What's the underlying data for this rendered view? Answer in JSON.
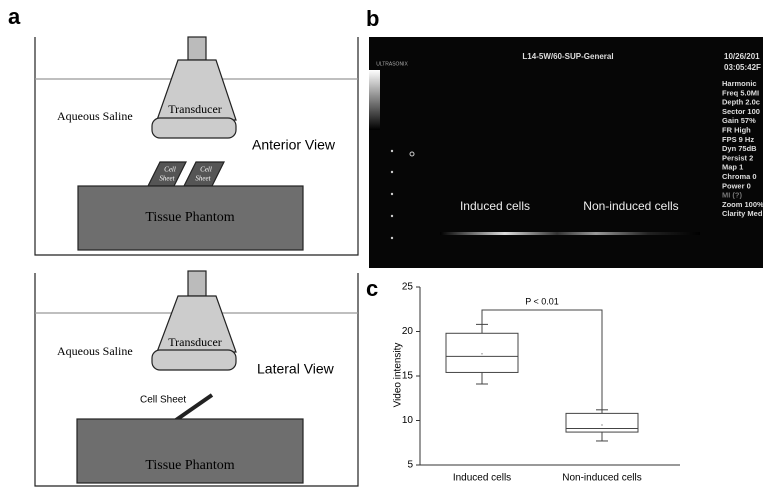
{
  "panels": {
    "a": {
      "label": "a",
      "top": {
        "medium": "Aqueous Saline",
        "device": "Transducer",
        "view": "Anterior View",
        "sheet_labels": [
          [
            "Cell",
            "Sheet"
          ],
          [
            "Cell",
            "Sheet"
          ]
        ],
        "phantom": "Tissue Phantom"
      },
      "bottom": {
        "medium": "Aqueous Saline",
        "device": "Transducer",
        "view": "Lateral View",
        "sheet": "Cell Sheet",
        "phantom": "Tissue Phantom"
      }
    },
    "b": {
      "label": "b",
      "logo": "ULTRASONIX",
      "preset": "L14-5W/60-SUP-General",
      "date": "10/26/201",
      "time": "03:05:42F",
      "settings": [
        "Harmonic",
        "Freq 5.0MI",
        "Depth 2.0c",
        "Sector 100",
        "Gain 57%",
        "FR High",
        "FPS 9 Hz",
        "Dyn 75dB",
        "Persist 2",
        "Map 1",
        "Chroma 0",
        "Power 0",
        "MI (?)",
        "Zoom 100%",
        "Clarity Med"
      ],
      "regions": [
        "Induced cells",
        "Non-induced cells"
      ]
    },
    "c": {
      "label": "c"
    }
  },
  "chart_data": {
    "type": "box",
    "ylabel": "Video intensity",
    "categories": [
      "Induced cells",
      "Non-induced cells"
    ],
    "boxes": [
      {
        "whisker_low": 14.1,
        "q1": 15.4,
        "median": 17.2,
        "q3": 19.8,
        "whisker_high": 20.8,
        "mean": 17.5
      },
      {
        "whisker_low": 7.7,
        "q1": 8.7,
        "median": 9.1,
        "q3": 10.8,
        "whisker_high": 11.2,
        "mean": 9.5
      }
    ],
    "annotation": "P < 0.01",
    "color": "#444444",
    "ylim": [
      5,
      25
    ],
    "yticks": [
      5,
      10,
      15,
      20,
      25
    ]
  }
}
